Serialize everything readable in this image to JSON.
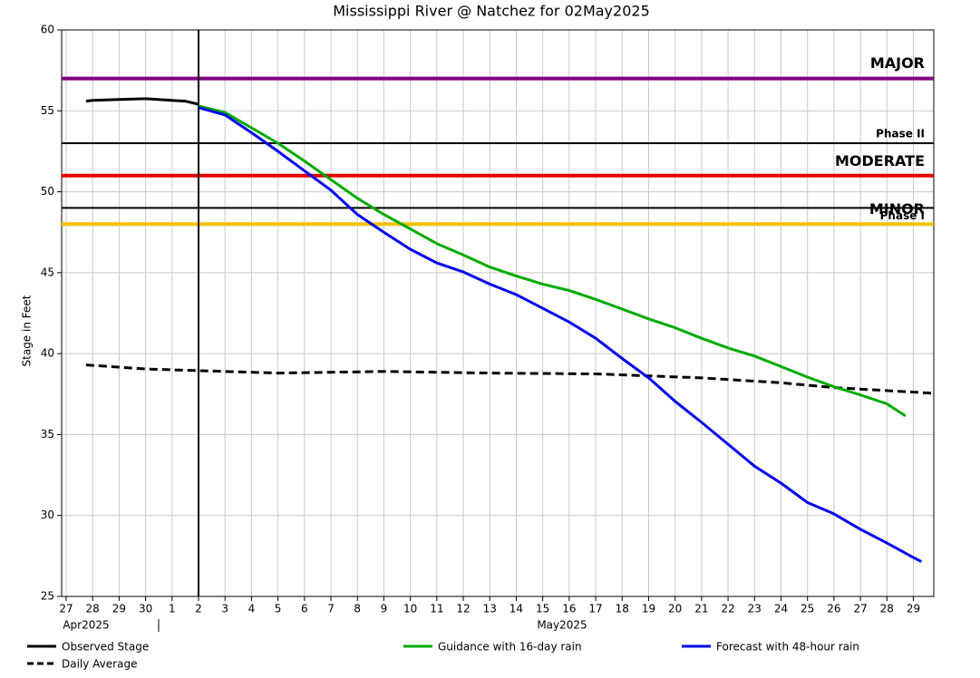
{
  "chart_data": {
    "type": "line",
    "title": "Mississippi River @ Natchez for 02May2025",
    "ylabel": "Stage in Feet",
    "months": [
      "Apr2025",
      "May2025"
    ],
    "xlim": [
      -0.17,
      32.77
    ],
    "xticks": [
      {
        "value": 0,
        "label": "27"
      },
      {
        "value": 1,
        "label": "28"
      },
      {
        "value": 2,
        "label": "29"
      },
      {
        "value": 3,
        "label": "30"
      },
      {
        "value": 4,
        "label": "1"
      },
      {
        "value": 5,
        "label": "2"
      },
      {
        "value": 6,
        "label": "3"
      },
      {
        "value": 7,
        "label": "4"
      },
      {
        "value": 8,
        "label": "5"
      },
      {
        "value": 9,
        "label": "6"
      },
      {
        "value": 10,
        "label": "7"
      },
      {
        "value": 11,
        "label": "8"
      },
      {
        "value": 12,
        "label": "9"
      },
      {
        "value": 13,
        "label": "10"
      },
      {
        "value": 14,
        "label": "11"
      },
      {
        "value": 15,
        "label": "12"
      },
      {
        "value": 16,
        "label": "13"
      },
      {
        "value": 17,
        "label": "14"
      },
      {
        "value": 18,
        "label": "15"
      },
      {
        "value": 19,
        "label": "16"
      },
      {
        "value": 20,
        "label": "17"
      },
      {
        "value": 21,
        "label": "18"
      },
      {
        "value": 22,
        "label": "19"
      },
      {
        "value": 23,
        "label": "20"
      },
      {
        "value": 24,
        "label": "21"
      },
      {
        "value": 25,
        "label": "22"
      },
      {
        "value": 26,
        "label": "23"
      },
      {
        "value": 27,
        "label": "24"
      },
      {
        "value": 28,
        "label": "25"
      },
      {
        "value": 29,
        "label": "26"
      },
      {
        "value": 30,
        "label": "27"
      },
      {
        "value": 31,
        "label": "28"
      },
      {
        "value": 32,
        "label": "29"
      }
    ],
    "ylim": [
      25,
      60
    ],
    "yticks": [
      25,
      30,
      35,
      40,
      45,
      50,
      55,
      60
    ],
    "grid": true,
    "now": 5,
    "thresholds": [
      {
        "label": "MAJOR",
        "value": 57,
        "color": "#800080"
      },
      {
        "label": "Phase II",
        "value": 53,
        "color": "#000000"
      },
      {
        "label": "MODERATE",
        "value": 51,
        "color": "#e60000"
      },
      {
        "label": "Phase I",
        "value": 49,
        "color": "#000000"
      },
      {
        "label": "MINOR",
        "value": 48,
        "color": "#f2c200"
      }
    ],
    "series": [
      {
        "name": "Observed Stage",
        "color": "#000000",
        "dashed": false,
        "x": [
          0.75,
          1,
          2,
          3,
          4,
          4.5,
          5
        ],
        "values": [
          55.6,
          55.65,
          55.7,
          55.75,
          55.65,
          55.6,
          55.4
        ]
      },
      {
        "name": "Daily Average",
        "color": "#000000",
        "dashed": true,
        "x": [
          0.75,
          3,
          5,
          8,
          12,
          16,
          20,
          24,
          27,
          29,
          32.77
        ],
        "values": [
          39.3,
          39.05,
          38.95,
          38.8,
          38.9,
          38.8,
          38.75,
          38.5,
          38.2,
          37.9,
          37.55
        ]
      },
      {
        "name": "Guidance with 16-day rain",
        "color": "#00aa00",
        "dashed": false,
        "x": [
          5,
          6,
          7,
          8,
          9,
          10,
          11,
          12,
          13,
          14,
          15,
          16,
          17,
          18,
          19,
          20,
          21,
          22,
          23,
          24,
          25,
          26,
          27,
          28,
          29,
          30,
          31,
          31.7
        ],
        "values": [
          55.3,
          54.9,
          53.95,
          53.0,
          51.9,
          50.75,
          49.6,
          48.6,
          47.7,
          46.8,
          46.1,
          45.35,
          44.8,
          44.3,
          43.9,
          43.35,
          42.75,
          42.15,
          41.6,
          40.95,
          40.35,
          39.85,
          39.2,
          38.55,
          37.95,
          37.45,
          36.9,
          36.15
        ]
      },
      {
        "name": "Forecast with 48-hour rain",
        "color": "#0000ee",
        "dashed": false,
        "x": [
          5,
          6,
          7,
          8,
          9,
          10,
          11,
          12,
          13,
          14,
          15,
          16,
          17,
          18,
          19,
          20,
          21,
          22,
          23,
          24,
          25,
          26,
          27,
          28,
          29,
          30,
          31,
          32,
          32.3
        ],
        "values": [
          55.2,
          54.75,
          53.65,
          52.5,
          51.3,
          50.1,
          48.6,
          47.5,
          46.45,
          45.6,
          45.05,
          44.3,
          43.65,
          42.8,
          41.95,
          40.95,
          39.7,
          38.5,
          37.05,
          35.75,
          34.4,
          33.05,
          32.0,
          30.8,
          30.1,
          29.15,
          28.3,
          27.4,
          27.15
        ]
      }
    ]
  }
}
